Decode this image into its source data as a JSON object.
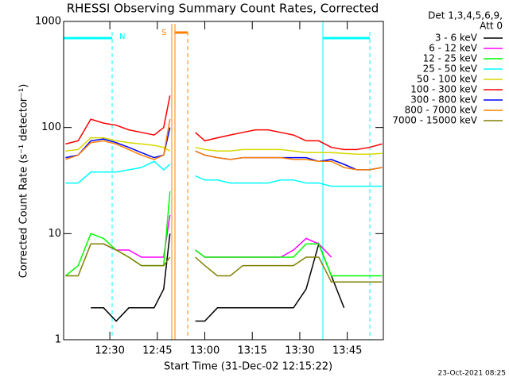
{
  "chart_data": {
    "type": "line",
    "title": "RHESSI Observing Summary Count Rates, Corrected",
    "x_label": "Start Time (31-Dec-02 12:15:22)",
    "y_label": "Corrected Count Rate (s⁻¹ detector⁻¹)",
    "legend_header": [
      "Det 1,3,4,5,6,9,",
      "Att 0"
    ],
    "timestamp": "23-Oct-2021 08:25",
    "annotations": [
      "N",
      "S"
    ],
    "log_y": true,
    "xlim": [
      15.4,
      116.4
    ],
    "xticks": [
      {
        "value": 30,
        "label": "12:30"
      },
      {
        "value": 45,
        "label": "12:45"
      },
      {
        "value": 60,
        "label": "13:00"
      },
      {
        "value": 75,
        "label": "13:15"
      },
      {
        "value": 90,
        "label": "13:30"
      },
      {
        "value": 105,
        "label": "13:45"
      }
    ],
    "ylim": [
      1,
      1000
    ],
    "yticks": [
      1,
      10,
      100,
      1000
    ],
    "x": [
      16,
      20,
      24,
      28,
      32,
      36,
      40,
      44,
      47,
      49,
      51,
      54,
      57,
      60,
      64,
      68,
      72,
      76,
      80,
      84,
      88,
      92,
      96,
      100,
      104,
      108,
      112,
      116
    ],
    "series": [
      {
        "name": "3 - 6 keV",
        "color": "#000000",
        "values": [
          null,
          null,
          2,
          2,
          1.5,
          2,
          2,
          2,
          3,
          10,
          null,
          null,
          1.5,
          1.5,
          2,
          2,
          2,
          2,
          2,
          2,
          2,
          3,
          8,
          4,
          2,
          null,
          null,
          null
        ]
      },
      {
        "name": "6 - 12 keV",
        "color": "#ff00ff",
        "values": [
          null,
          null,
          8,
          8,
          7,
          7,
          6,
          6,
          6,
          15,
          null,
          null,
          7,
          6,
          6,
          6,
          6,
          6,
          6,
          6,
          7,
          9,
          8,
          6,
          null,
          null,
          null,
          null
        ]
      },
      {
        "name": "12 - 25 keV",
        "color": "#00ff00",
        "values": [
          4,
          5,
          10,
          9,
          7,
          6,
          5,
          5,
          5,
          25,
          null,
          null,
          7,
          6,
          6,
          6,
          6,
          6,
          6,
          6,
          6,
          8,
          8,
          4,
          4,
          4,
          4,
          4
        ]
      },
      {
        "name": "25 - 50 keV",
        "color": "#00ffff",
        "values": [
          30,
          30,
          38,
          38,
          38,
          40,
          42,
          48,
          40,
          45,
          null,
          null,
          35,
          32,
          32,
          30,
          30,
          30,
          30,
          32,
          32,
          30,
          30,
          28,
          28,
          28,
          28,
          28
        ]
      },
      {
        "name": "50 - 100 keV",
        "color": "#d8d800",
        "values": [
          60,
          62,
          80,
          80,
          75,
          72,
          70,
          68,
          65,
          60,
          null,
          null,
          65,
          62,
          60,
          60,
          62,
          62,
          62,
          62,
          60,
          58,
          58,
          58,
          57,
          56,
          56,
          57
        ]
      },
      {
        "name": "100 - 300 keV",
        "color": "#ff0000",
        "values": [
          70,
          75,
          120,
          110,
          105,
          95,
          90,
          85,
          100,
          200,
          null,
          null,
          90,
          75,
          80,
          85,
          90,
          95,
          95,
          90,
          85,
          75,
          75,
          65,
          62,
          62,
          65,
          70
        ]
      },
      {
        "name": "300 - 800 keV",
        "color": "#0000ff",
        "values": [
          52,
          55,
          75,
          78,
          72,
          65,
          58,
          52,
          55,
          100,
          null,
          null,
          60,
          55,
          52,
          50,
          52,
          52,
          52,
          52,
          52,
          52,
          48,
          50,
          45,
          40,
          40,
          42
        ]
      },
      {
        "name": "800 - 7000 keV",
        "color": "#ff8000",
        "values": [
          50,
          55,
          72,
          75,
          70,
          62,
          55,
          50,
          55,
          120,
          null,
          null,
          60,
          55,
          52,
          50,
          52,
          52,
          52,
          52,
          50,
          50,
          48,
          48,
          42,
          40,
          40,
          42
        ]
      },
      {
        "name": "7000 - 15000 keV",
        "color": "#808000",
        "values": [
          4,
          4,
          8,
          8,
          7,
          6,
          5,
          5,
          5,
          6,
          null,
          null,
          6,
          5,
          4,
          4,
          5,
          5,
          5,
          5,
          5,
          6,
          6,
          3.5,
          3.5,
          3.5,
          3.5,
          3.5
        ]
      }
    ]
  }
}
